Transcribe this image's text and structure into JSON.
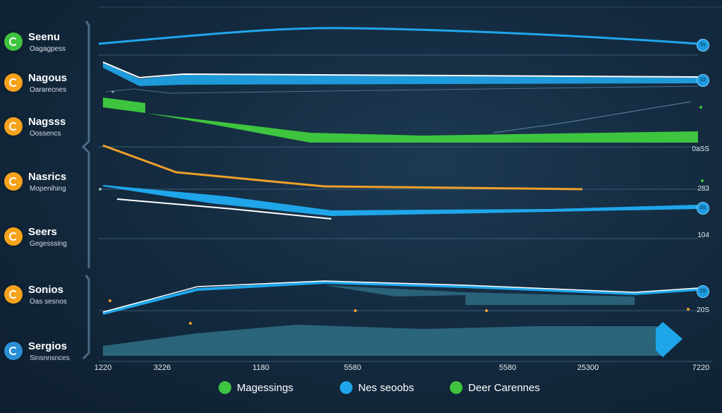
{
  "chart_data": {
    "type": "line",
    "rows": [
      {
        "title": "Seenu",
        "subtitle": "Oagagpess",
        "icon_color": "#3ec43e",
        "icon": "refresh-icon"
      },
      {
        "title": "Nagous",
        "subtitle": "Oararecnes",
        "icon_color": "#f7a21b",
        "icon": "refresh-icon"
      },
      {
        "title": "Nagsss",
        "subtitle": "Oossencs",
        "icon_color": "#f7a21b",
        "icon": "refresh-icon"
      },
      {
        "title": "Nasrics",
        "subtitle": "Mopenihing",
        "icon_color": "#f7a21b",
        "icon": "refresh-icon"
      },
      {
        "title": "Seers",
        "subtitle": "Gegesssing",
        "icon_color": "#f7a21b",
        "icon": "refresh-icon"
      },
      {
        "title": "Sonios",
        "subtitle": "Oas sesnos",
        "icon_color": "#f7a21b",
        "icon": "refresh-icon"
      },
      {
        "title": "Sergios",
        "subtitle": "Sinsnnsnces",
        "icon_color": "#2b8fd6",
        "icon": "refresh-icon"
      }
    ],
    "x_tick_labels": [
      "1220",
      "3226",
      "1180",
      "5580",
      "5580",
      "25300",
      "7220"
    ],
    "right_tick_labels": [
      "0aSS",
      "283",
      "104",
      "20S"
    ],
    "end_marker_labels": [
      "5s",
      "02",
      "0s",
      "2S"
    ],
    "series": [
      {
        "name": "Magessings",
        "color": "#3ec43e"
      },
      {
        "name": "Nes seoobs",
        "color": "#1fa6ea"
      },
      {
        "name": "Deer Carennes",
        "color": "#3ec43e"
      }
    ],
    "colors": {
      "blue": "#1fa6ea",
      "green": "#3ec43e",
      "orange": "#f0a02a",
      "dark_fill": "#2d6b82"
    },
    "grid": true,
    "legend_position": "bottom"
  }
}
